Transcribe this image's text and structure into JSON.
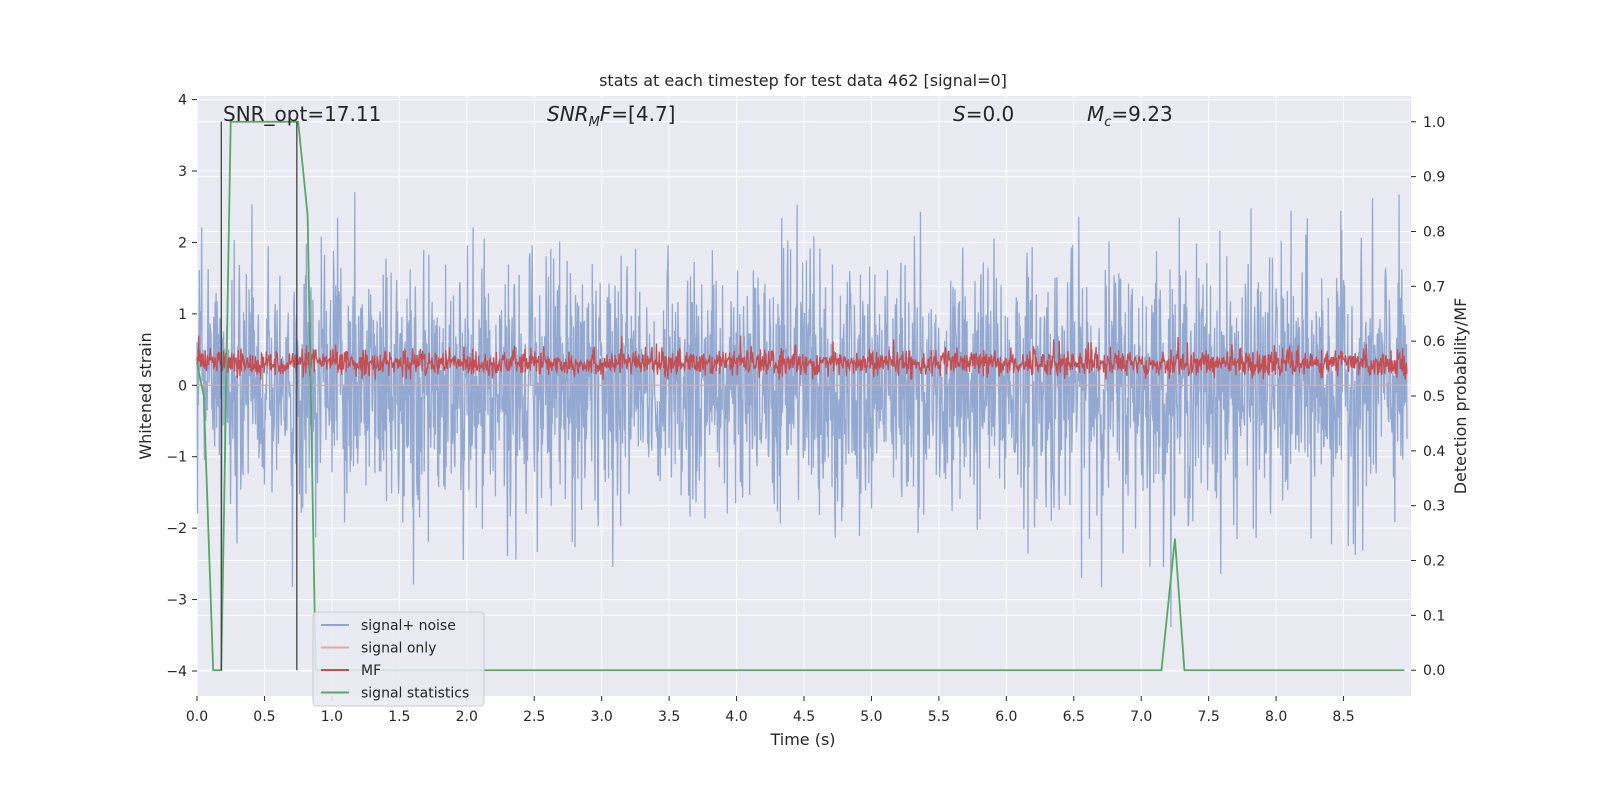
{
  "chart_data": {
    "type": "line",
    "title": "stats at each timestep for test data 462 [signal=0]",
    "xlabel": "Time (s)",
    "ylabel_left": "Whitened strain",
    "ylabel_right": "Detection probability/MF",
    "xlim": [
      0.0,
      9.0
    ],
    "ylim_left": [
      -4.35,
      4.05
    ],
    "ylim_right": [
      -0.047,
      1.047
    ],
    "x_ticks": [
      "0.0",
      "0.5",
      "1.0",
      "1.5",
      "2.0",
      "2.5",
      "3.0",
      "3.5",
      "4.0",
      "4.5",
      "5.0",
      "5.5",
      "6.0",
      "6.5",
      "7.0",
      "7.5",
      "8.0",
      "8.5"
    ],
    "y_left_ticks": [
      "4",
      "3",
      "2",
      "1",
      "0",
      "−1",
      "−2",
      "−3",
      "−4"
    ],
    "y_right_ticks": [
      "1.0",
      "0.9",
      "0.8",
      "0.7",
      "0.6",
      "0.5",
      "0.4",
      "0.3",
      "0.2",
      "0.1",
      "0.0"
    ],
    "grid": true,
    "legend_position": "lower-left",
    "annotations": {
      "snr_opt": "SNR_opt=17.11",
      "snr_mf": "=[4.7]",
      "s_value": "=0.0",
      "mc_value": "=9.23"
    },
    "series": [
      {
        "name": "signal+ noise",
        "color": "#8fa5cf",
        "axis": "left",
        "kind": "noise",
        "amplitude_std": 0.9,
        "range": [
          -4.0,
          3.6
        ]
      },
      {
        "name": "signal only",
        "color": "#e9a88f",
        "axis": "left",
        "kind": "flat",
        "value": 0.0
      },
      {
        "name": "MF",
        "color": "#c44e52",
        "axis": "right",
        "kind": "noise",
        "mean": 0.56,
        "range": [
          0.53,
          0.61
        ]
      },
      {
        "name": "signal statistics",
        "color": "#55a868",
        "axis": "right",
        "kind": "line",
        "x": [
          0.0,
          0.05,
          0.12,
          0.18,
          0.25,
          0.3,
          0.4,
          0.5,
          0.6,
          0.7,
          0.75,
          0.82,
          0.88,
          0.95,
          1.5,
          2.0,
          3.0,
          4.0,
          5.0,
          6.0,
          7.0,
          7.15,
          7.25,
          7.32,
          7.4,
          8.0,
          8.5,
          8.95
        ],
        "y": [
          0.56,
          0.5,
          0.0,
          0.0,
          1.0,
          1.0,
          1.0,
          1.0,
          1.0,
          1.0,
          1.0,
          0.83,
          0.0,
          0.0,
          0.0,
          0.0,
          0.0,
          0.0,
          0.0,
          0.0,
          0.0,
          0.0,
          0.24,
          0.0,
          0.0,
          0.0,
          0.0,
          0.0
        ]
      }
    ],
    "vertical_lines": [
      {
        "x": 0.18,
        "y_from": 0.0,
        "y_to": 1.0,
        "color": "#444444"
      },
      {
        "x": 0.74,
        "y_from": 0.0,
        "y_to": 1.0,
        "color": "#444444"
      }
    ],
    "colors": {
      "axes_bg": "#eaeaf2",
      "grid": "#ffffff",
      "text": "#262626"
    }
  }
}
